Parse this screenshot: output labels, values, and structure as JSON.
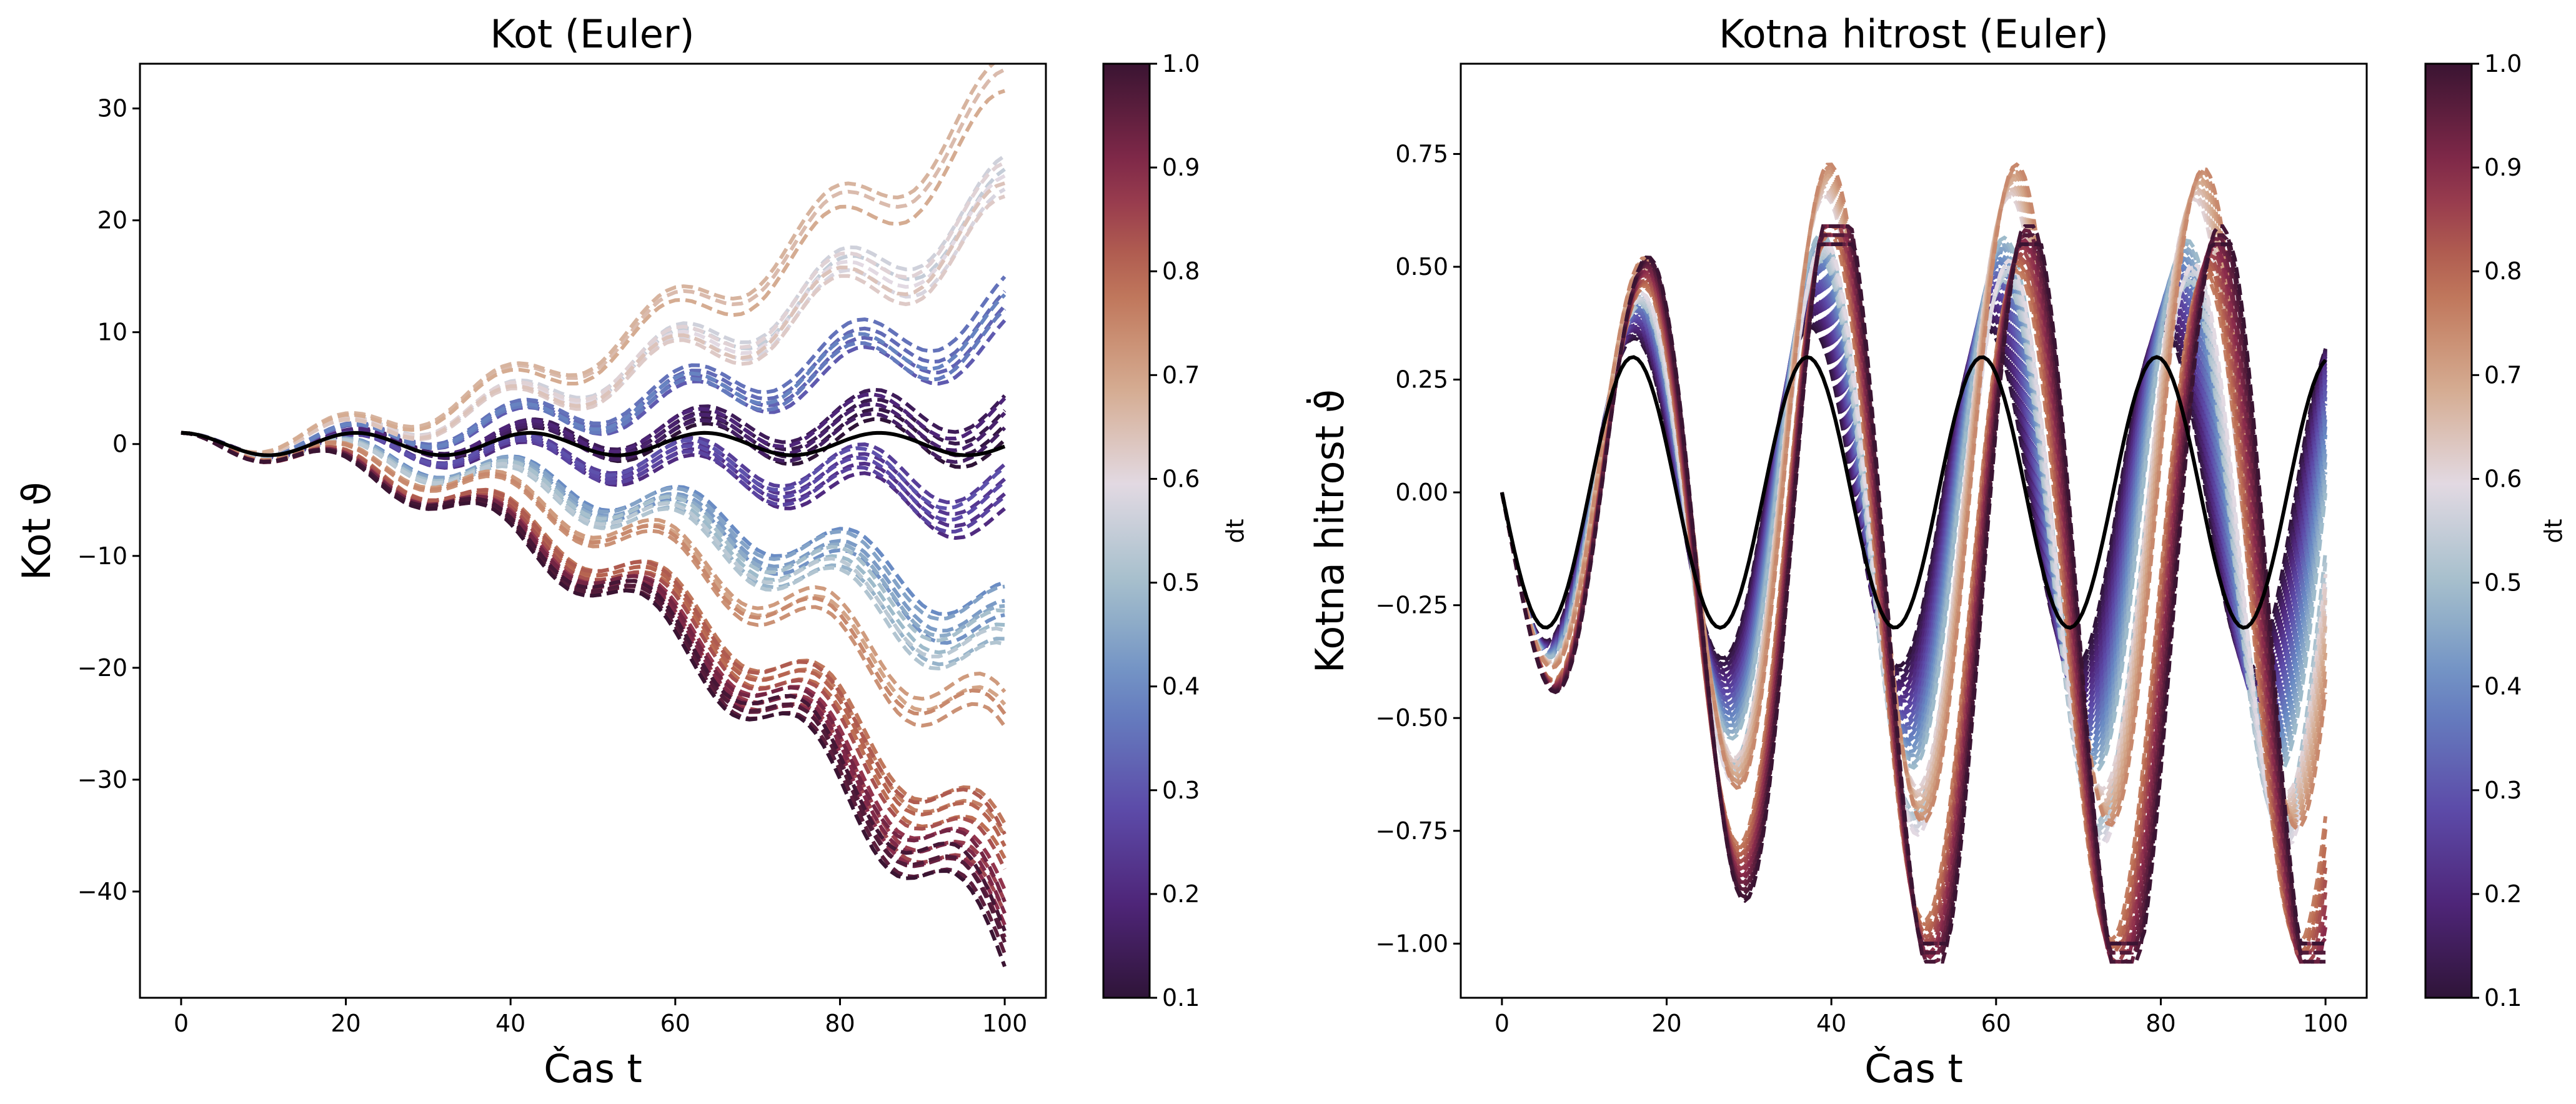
{
  "chart_data": [
    {
      "type": "line",
      "title": "Kot (Euler)",
      "xlabel": "Čas t",
      "ylabel": "Kot ϑ",
      "xlim": [
        -5,
        105
      ],
      "ylim": [
        -49.5,
        34
      ],
      "xticks": [
        "0",
        "20",
        "40",
        "60",
        "80",
        "100"
      ],
      "xtick_values": [
        0,
        20,
        40,
        60,
        80,
        100
      ],
      "yticks": [
        "30",
        "20",
        "10",
        "0",
        "−10",
        "−20",
        "−30",
        "−40"
      ],
      "ytick_values": [
        30,
        20,
        10,
        0,
        -10,
        -20,
        -30,
        -40
      ],
      "grid": false,
      "colormap": "twilight_shifted",
      "colorbar": {
        "label": "dt",
        "range": [
          0.1,
          1.0
        ],
        "ticks": [
          "1.0",
          "0.9",
          "0.8",
          "0.7",
          "0.6",
          "0.5",
          "0.4",
          "0.3",
          "0.2",
          "0.1"
        ],
        "tick_values": [
          1.0,
          0.9,
          0.8,
          0.7,
          0.6,
          0.5,
          0.4,
          0.3,
          0.2,
          0.1
        ]
      },
      "series_description": "Family of dashed Euler solutions colored by dt (0.1–1.0) plus a solid black reference solution",
      "reference": {
        "style": "solid black",
        "amplitude": 1.0,
        "period": 21.2,
        "x_range": [
          0,
          100
        ]
      },
      "euler_families": [
        {
          "dt_range": [
            0.95,
            1.0
          ],
          "end_value": -45.5
        },
        {
          "dt_range": [
            0.85,
            0.95
          ],
          "end_value": -43
        },
        {
          "dt_range": [
            0.75,
            0.85
          ],
          "end_value": -38
        },
        {
          "dt_range": [
            0.7,
            0.75
          ],
          "end_value": -26
        },
        {
          "dt_range": [
            0.65,
            0.7
          ],
          "end_value": 30
        },
        {
          "dt_range": [
            0.55,
            0.65
          ],
          "end_value": 21
        },
        {
          "dt_range": [
            0.45,
            0.55
          ],
          "end_value": -19
        },
        {
          "dt_range": [
            0.4,
            0.45
          ],
          "end_value": -16
        },
        {
          "dt_range": [
            0.3,
            0.4
          ],
          "end_value": 11
        },
        {
          "dt_range": [
            0.2,
            0.3
          ],
          "end_value": -5
        },
        {
          "dt_range": [
            0.1,
            0.2
          ],
          "end_value": 2
        }
      ]
    },
    {
      "type": "line",
      "title": "Kotna hitrost (Euler)",
      "xlabel": "Čas t",
      "ylabel": "Kotna hitrost ϑ̇",
      "xlim": [
        -5,
        105
      ],
      "ylim": [
        -1.12,
        0.95
      ],
      "xticks": [
        "0",
        "20",
        "40",
        "60",
        "80",
        "100"
      ],
      "xtick_values": [
        0,
        20,
        40,
        60,
        80,
        100
      ],
      "yticks": [
        "0.75",
        "0.50",
        "0.25",
        "0.00",
        "−0.25",
        "−0.50",
        "−0.75",
        "−1.00"
      ],
      "ytick_values": [
        0.75,
        0.5,
        0.25,
        0.0,
        -0.25,
        -0.5,
        -0.75,
        -1.0
      ],
      "grid": false,
      "colormap": "twilight_shifted",
      "colorbar": {
        "label": "dt",
        "range": [
          0.1,
          1.0
        ],
        "ticks": [
          "1.0",
          "0.9",
          "0.8",
          "0.7",
          "0.6",
          "0.5",
          "0.4",
          "0.3",
          "0.2",
          "0.1"
        ],
        "tick_values": [
          1.0,
          0.9,
          0.8,
          0.7,
          0.6,
          0.5,
          0.4,
          0.3,
          0.2,
          0.1
        ]
      },
      "series_description": "Family of dashed Euler angular-velocity solutions colored by dt plus a solid black reference oscillation",
      "reference": {
        "style": "solid black",
        "amplitude": 0.3,
        "period": 21.2,
        "peaks": [
          {
            "x": 5.5,
            "y": -0.3
          },
          {
            "x": 16,
            "y": 0.3
          },
          {
            "x": 26.5,
            "y": -0.3
          },
          {
            "x": 37,
            "y": 0.3
          },
          {
            "x": 47.5,
            "y": -0.3
          },
          {
            "x": 58,
            "y": 0.3
          },
          {
            "x": 69,
            "y": -0.3
          },
          {
            "x": 79.5,
            "y": 0.3
          },
          {
            "x": 90,
            "y": -0.3
          },
          {
            "x": 100,
            "y": 0.28
          }
        ]
      }
    }
  ]
}
